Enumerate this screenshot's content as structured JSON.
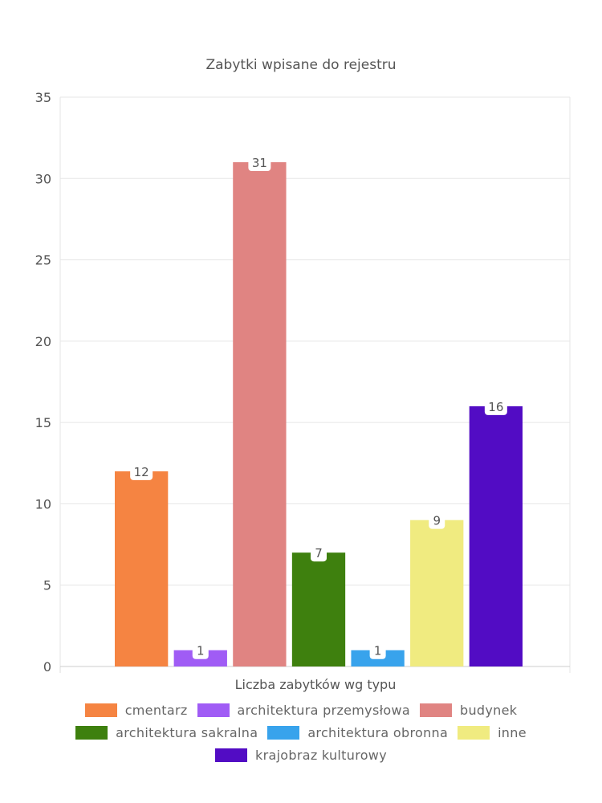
{
  "chart_data": {
    "type": "bar",
    "title": "Zabytki wpisane do rejestru",
    "xlabel": "Liczba zabytków wg typu",
    "ylabel": "",
    "ylim": [
      0,
      35
    ],
    "yticks": [
      0,
      5,
      10,
      15,
      20,
      25,
      30,
      35
    ],
    "grid": true,
    "legend_position": "bottom",
    "series": [
      {
        "name": "cmentarz",
        "value": 12,
        "color": "#F58442"
      },
      {
        "name": "architektura przemysłowa",
        "value": 1,
        "color": "#A05CF5"
      },
      {
        "name": "budynek",
        "value": 31,
        "color": "#E08482"
      },
      {
        "name": "architektura sakralna",
        "value": 7,
        "color": "#3E800E"
      },
      {
        "name": "architektura obronna",
        "value": 1,
        "color": "#38A3EC"
      },
      {
        "name": "inne",
        "value": 9,
        "color": "#F0EB80"
      },
      {
        "name": "krajobraz kulturowy",
        "value": 16,
        "color": "#520CC4"
      }
    ]
  }
}
